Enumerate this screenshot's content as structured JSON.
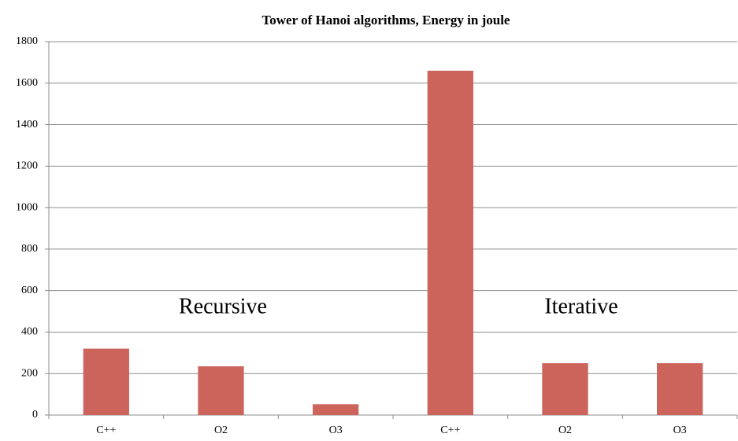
{
  "chart_data": {
    "type": "bar",
    "title": "Tower of Hanoi algorithms, Energy in joule",
    "categories": [
      "C++",
      "O2",
      "O3",
      "C++",
      "O2",
      "O3"
    ],
    "values": [
      320,
      235,
      52,
      1660,
      250,
      250
    ],
    "color": "#cd645c",
    "ylim": [
      0,
      1800
    ],
    "yticks": [
      0,
      200,
      400,
      600,
      800,
      1000,
      1200,
      1400,
      1600,
      1800
    ],
    "grid": true,
    "annotations": [
      "Recursive",
      "Iterative"
    ]
  }
}
